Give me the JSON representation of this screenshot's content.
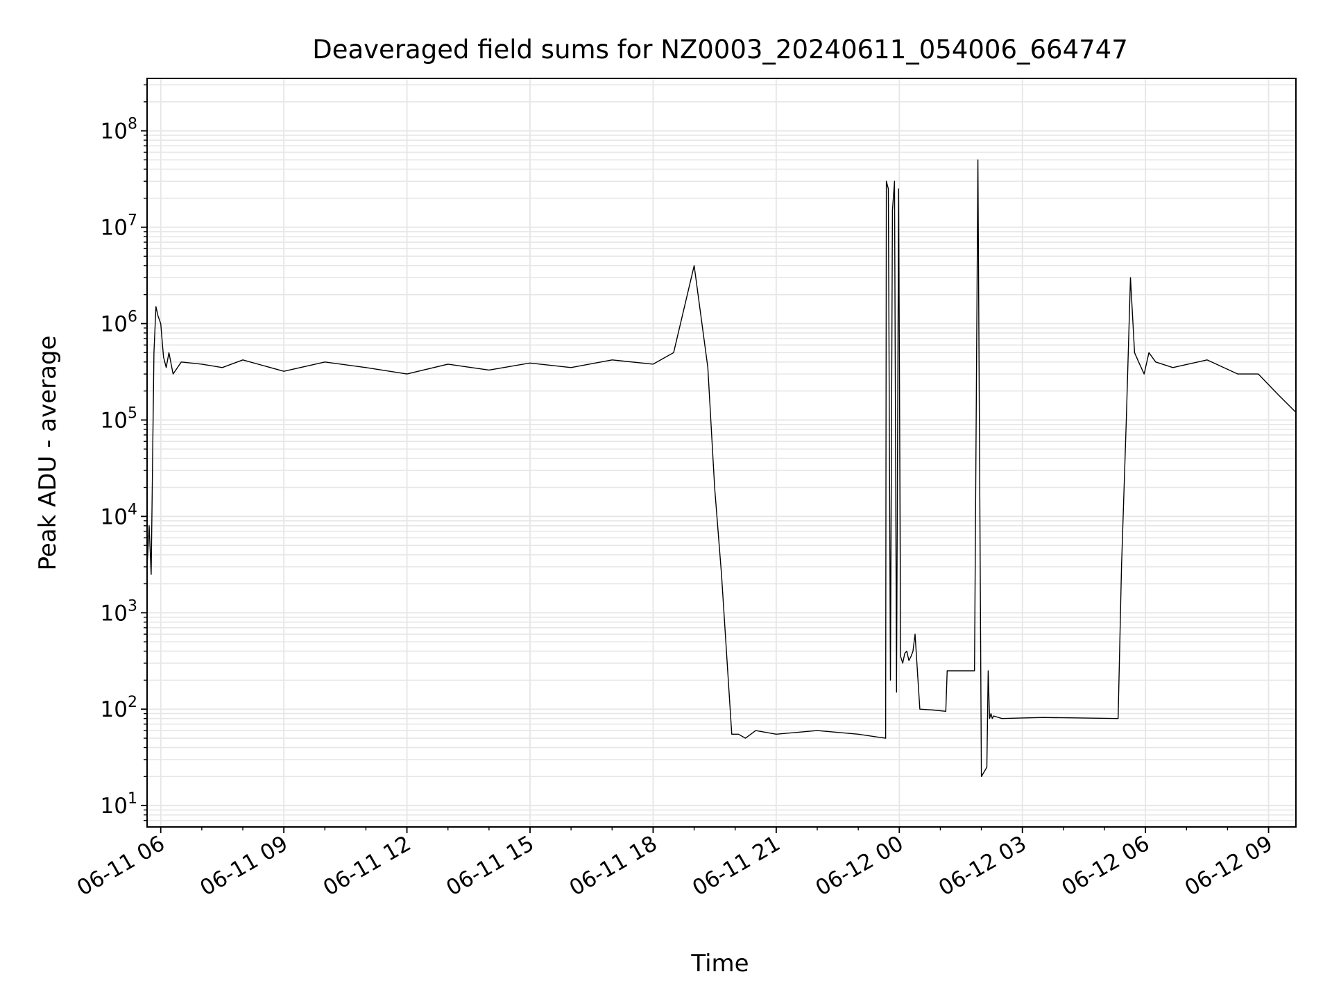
{
  "chart_data": {
    "type": "line",
    "title": "Deaveraged field sums for NZ0003_20240611_054006_664747",
    "xlabel": "Time",
    "ylabel": "Peak ADU - average",
    "yscale": "log",
    "ylim": [
      6,
      350000000
    ],
    "xlim": [
      "2024-06-11 05:40",
      "2024-06-12 09:40"
    ],
    "grid": true,
    "line_color": "#000000",
    "grid_color": "#e6e6e6",
    "x_ticks": [
      {
        "value": "2024-06-11 06:00",
        "label": "06-11 06"
      },
      {
        "value": "2024-06-11 09:00",
        "label": "06-11 09"
      },
      {
        "value": "2024-06-11 12:00",
        "label": "06-11 12"
      },
      {
        "value": "2024-06-11 15:00",
        "label": "06-11 15"
      },
      {
        "value": "2024-06-11 18:00",
        "label": "06-11 18"
      },
      {
        "value": "2024-06-11 21:00",
        "label": "06-11 21"
      },
      {
        "value": "2024-06-12 00:00",
        "label": "06-12 00"
      },
      {
        "value": "2024-06-12 03:00",
        "label": "06-12 03"
      },
      {
        "value": "2024-06-12 06:00",
        "label": "06-12 06"
      },
      {
        "value": "2024-06-12 09:00",
        "label": "06-12 09"
      }
    ],
    "y_ticks": [
      {
        "value": 10,
        "base": "10",
        "exp": "1"
      },
      {
        "value": 100,
        "base": "10",
        "exp": "2"
      },
      {
        "value": 1000,
        "base": "10",
        "exp": "3"
      },
      {
        "value": 10000,
        "base": "10",
        "exp": "4"
      },
      {
        "value": 100000,
        "base": "10",
        "exp": "5"
      },
      {
        "value": 1000000,
        "base": "10",
        "exp": "6"
      },
      {
        "value": 10000000,
        "base": "10",
        "exp": "7"
      },
      {
        "value": 100000000,
        "base": "10",
        "exp": "8"
      }
    ],
    "series": [
      {
        "x": [
          "2024-06-11 05:40",
          "2024-06-11 05:43",
          "2024-06-11 05:46",
          "2024-06-11 05:50",
          "2024-06-11 05:53",
          "2024-06-11 05:56",
          "2024-06-11 06:00",
          "2024-06-11 06:04",
          "2024-06-11 06:08",
          "2024-06-11 06:12",
          "2024-06-11 06:18",
          "2024-06-11 06:30",
          "2024-06-11 07:00",
          "2024-06-11 07:30",
          "2024-06-11 08:00",
          "2024-06-11 09:00",
          "2024-06-11 10:00",
          "2024-06-11 11:00",
          "2024-06-11 12:00",
          "2024-06-11 13:00",
          "2024-06-11 14:00",
          "2024-06-11 15:00",
          "2024-06-11 16:00",
          "2024-06-11 17:00",
          "2024-06-11 18:00",
          "2024-06-11 18:30",
          "2024-06-11 19:00",
          "2024-06-11 19:20",
          "2024-06-11 19:30",
          "2024-06-11 19:40",
          "2024-06-11 19:55",
          "2024-06-11 20:05",
          "2024-06-11 20:15",
          "2024-06-11 20:30",
          "2024-06-11 21:00",
          "2024-06-11 22:00",
          "2024-06-11 23:00",
          "2024-06-11 23:40",
          "2024-06-11 23:41",
          "2024-06-11 23:44",
          "2024-06-11 23:47",
          "2024-06-11 23:50",
          "2024-06-11 23:53",
          "2024-06-11 23:56",
          "2024-06-11 23:59",
          "2024-06-12 00:02",
          "2024-06-12 00:05",
          "2024-06-12 00:08",
          "2024-06-12 00:11",
          "2024-06-12 00:14",
          "2024-06-12 00:17",
          "2024-06-12 00:20",
          "2024-06-12 00:23",
          "2024-06-12 00:30",
          "2024-06-12 00:50",
          "2024-06-12 01:08",
          "2024-06-12 01:10",
          "2024-06-12 01:12",
          "2024-06-12 01:50",
          "2024-06-12 01:55",
          "2024-06-12 02:00",
          "2024-06-12 02:08",
          "2024-06-12 02:10",
          "2024-06-12 02:12",
          "2024-06-12 02:14",
          "2024-06-12 02:16",
          "2024-06-12 02:18",
          "2024-06-12 02:30",
          "2024-06-12 03:30",
          "2024-06-12 05:20",
          "2024-06-12 05:25",
          "2024-06-12 05:32",
          "2024-06-12 05:38",
          "2024-06-12 05:44",
          "2024-06-12 05:50",
          "2024-06-12 05:58",
          "2024-06-12 06:05",
          "2024-06-12 06:15",
          "2024-06-12 06:40",
          "2024-06-12 07:30",
          "2024-06-12 08:15",
          "2024-06-12 08:45",
          "2024-06-12 09:15",
          "2024-06-12 09:40"
        ],
        "y": [
          3000,
          8000,
          2500,
          500000,
          1500000,
          1200000,
          1000000,
          450000,
          350000,
          500000,
          300000,
          400000,
          380000,
          350000,
          420000,
          320000,
          400000,
          350000,
          300000,
          380000,
          330000,
          390000,
          350000,
          420000,
          380000,
          500000,
          4000000,
          350000,
          20000,
          2500,
          55,
          55,
          50,
          60,
          55,
          60,
          55,
          50,
          30000000,
          25000000,
          200,
          15000000,
          30000000,
          150,
          25000000,
          350,
          300,
          380,
          400,
          320,
          350,
          400,
          600,
          100,
          98,
          95,
          250,
          250,
          250,
          50000000,
          20,
          25,
          250,
          80,
          90,
          80,
          85,
          80,
          82,
          80,
          3000,
          100000,
          3000000,
          500000,
          400000,
          300000,
          500000,
          400000,
          350000,
          420000,
          300000,
          300000,
          180000,
          120000
        ]
      }
    ]
  }
}
